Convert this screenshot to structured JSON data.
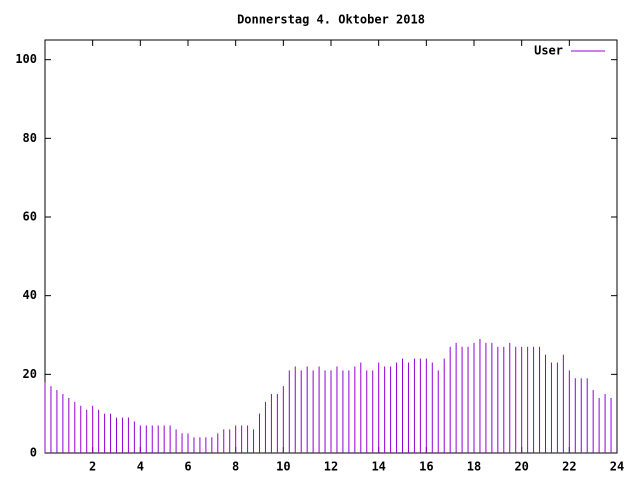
{
  "chart_data": {
    "type": "impulse",
    "title": "Donnerstag 4. Oktober 2018",
    "x": [
      0,
      0.25,
      0.5,
      0.75,
      1,
      1.25,
      1.5,
      1.75,
      2,
      2.25,
      2.5,
      2.75,
      3,
      3.25,
      3.5,
      3.75,
      4,
      4.25,
      4.5,
      4.75,
      5,
      5.25,
      5.5,
      5.75,
      6,
      6.25,
      6.5,
      6.75,
      7,
      7.25,
      7.5,
      7.75,
      8,
      8.25,
      8.5,
      8.75,
      9,
      9.25,
      9.5,
      9.75,
      10,
      10.25,
      10.5,
      10.75,
      11,
      11.25,
      11.5,
      11.75,
      12,
      12.25,
      12.5,
      12.75,
      13,
      13.25,
      13.5,
      13.75,
      14,
      14.25,
      14.5,
      14.75,
      15,
      15.25,
      15.5,
      15.75,
      16,
      16.25,
      16.5,
      16.75,
      17,
      17.25,
      17.5,
      17.75,
      18,
      18.25,
      18.5,
      18.75,
      19,
      19.25,
      19.5,
      19.75,
      20,
      20.25,
      20.5,
      20.75,
      21,
      21.25,
      21.5,
      21.75,
      22,
      22.25,
      22.5,
      22.75,
      23,
      23.25,
      23.5,
      23.75
    ],
    "series": [
      {
        "name": "User",
        "color": "#9400d3",
        "values": [
          18,
          17,
          16,
          15,
          14,
          13,
          12,
          11,
          12,
          11,
          10,
          10,
          9,
          9,
          9,
          8,
          7,
          7,
          7,
          7,
          7,
          7,
          6,
          5,
          5,
          4,
          4,
          4,
          4,
          5,
          6,
          6,
          7,
          7,
          7,
          6,
          10,
          13,
          15,
          15,
          17,
          21,
          22,
          21,
          22,
          21,
          22,
          21,
          21,
          22,
          21,
          21,
          22,
          23,
          21,
          21,
          23,
          22,
          22,
          23,
          24,
          23,
          24,
          24,
          24,
          23,
          21,
          24,
          27,
          28,
          27,
          27,
          28,
          29,
          28,
          28,
          27,
          27,
          28,
          27,
          27,
          27,
          27,
          27,
          25,
          23,
          23,
          25,
          21,
          19,
          19,
          19,
          16,
          14,
          15,
          14
        ]
      }
    ],
    "xlim": [
      0,
      24
    ],
    "xticks": [
      2,
      4,
      6,
      8,
      10,
      12,
      14,
      16,
      18,
      20,
      22,
      24
    ],
    "ylim": [
      0,
      105
    ],
    "yticks": [
      0,
      20,
      40,
      60,
      80,
      100
    ],
    "legend": "top-right"
  }
}
